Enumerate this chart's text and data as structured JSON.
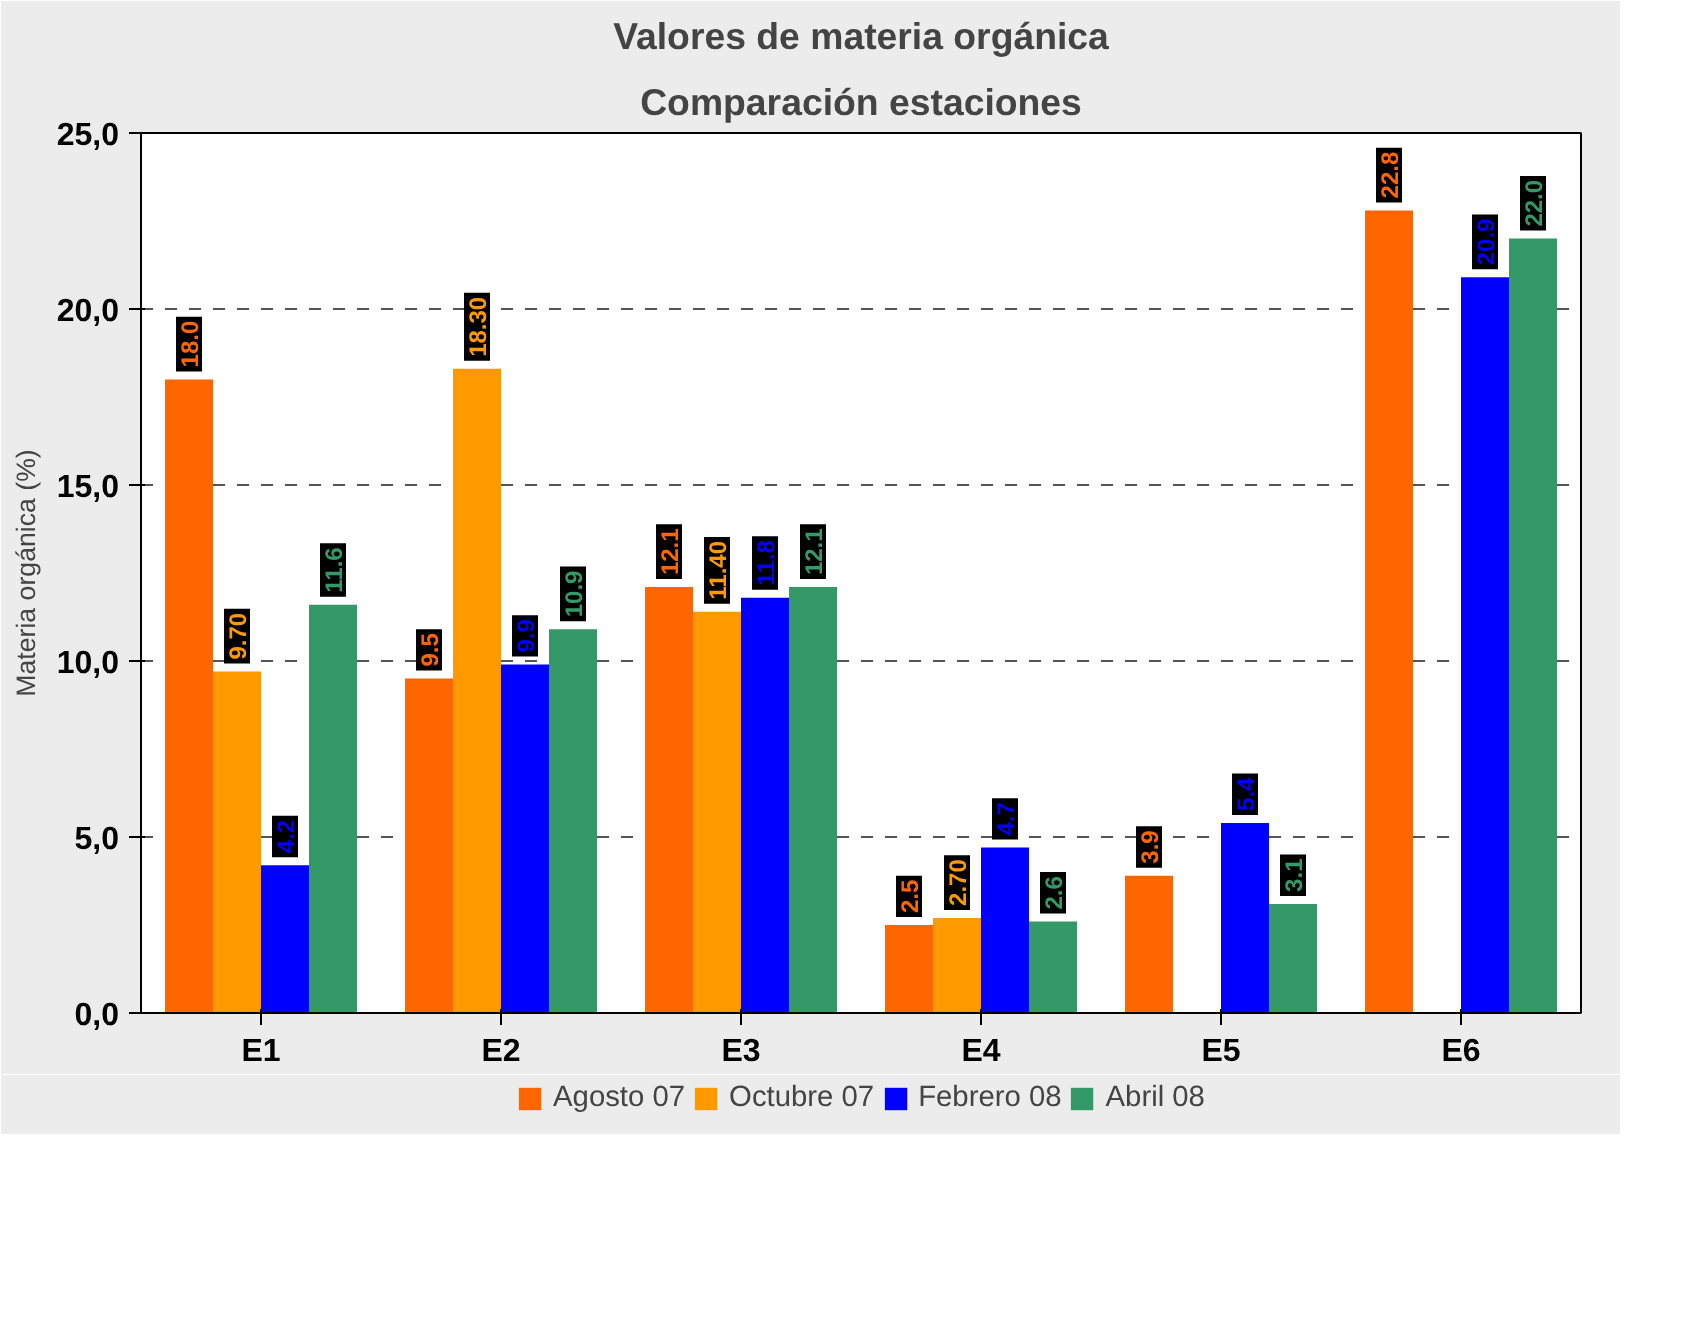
{
  "chart_data": {
    "type": "bar",
    "title": "Valores de materia orgánica",
    "subtitle": "Comparación estaciones",
    "ylabel": "Materia orgánica (%)",
    "categories": [
      "E1",
      "E2",
      "E3",
      "E4",
      "E5",
      "E6"
    ],
    "series": [
      {
        "name": "Agosto 07",
        "color": "#ff6600",
        "values": [
          18.0,
          9.5,
          12.1,
          2.5,
          3.9,
          22.8
        ],
        "value_labels": [
          "18.0",
          "9.5",
          "12.1",
          "2.5",
          "3.9",
          "22.8"
        ]
      },
      {
        "name": "Octubre 07",
        "color": "#ff9900",
        "values": [
          9.7,
          18.3,
          11.4,
          2.7,
          null,
          null
        ],
        "value_labels": [
          "9.70",
          "18.30",
          "11.40",
          "2.70",
          null,
          null
        ]
      },
      {
        "name": "Febrero 08",
        "color": "#0000ff",
        "values": [
          4.2,
          9.9,
          11.8,
          4.7,
          5.4,
          20.9
        ],
        "value_labels": [
          "4.2",
          "9.9",
          "11.8",
          "4.7",
          "5.4",
          "20.9"
        ]
      },
      {
        "name": "Abril 08",
        "color": "#339966",
        "values": [
          11.6,
          10.9,
          12.1,
          2.6,
          3.1,
          22.0
        ],
        "value_labels": [
          "11.6",
          "10.9",
          "12.1",
          "2.6",
          "3.1",
          "22.0"
        ]
      }
    ],
    "ylim": [
      0,
      25
    ],
    "yticks": [
      {
        "value": 0,
        "label": "0,0"
      },
      {
        "value": 5,
        "label": "5,0"
      },
      {
        "value": 10,
        "label": "10,0"
      },
      {
        "value": 15,
        "label": "15,0"
      },
      {
        "value": 20,
        "label": "20,0"
      },
      {
        "value": 25,
        "label": "25,0"
      }
    ],
    "grid": "y",
    "legend": "bottom"
  }
}
